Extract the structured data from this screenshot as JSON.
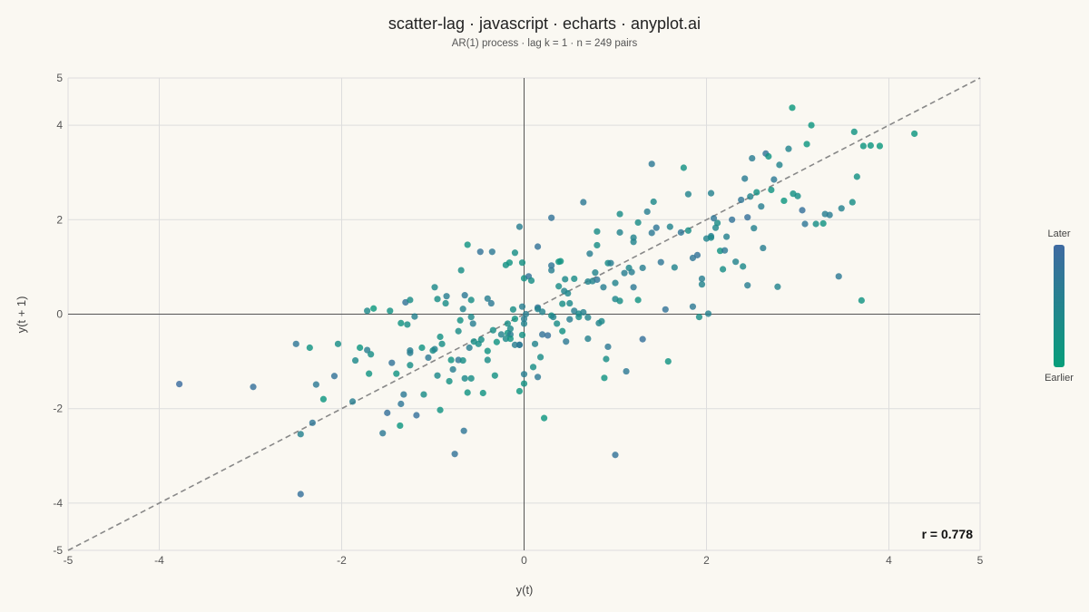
{
  "colors": {
    "background": "#faf8f2",
    "earlier": "#079e7a",
    "later": "#3f6aa1",
    "reference_line": "#888888",
    "grid": "#dddddd"
  },
  "chart_data": {
    "type": "scatter",
    "title": "scatter-lag · javascript · echarts · anyplot.ai",
    "subtitle": "AR(1) process · lag k = 1 · n = 249 pairs",
    "xlabel": "y(t)",
    "ylabel": "y(t + 1)",
    "xlim": [
      -5,
      5
    ],
    "ylim": [
      -5,
      5
    ],
    "x_ticks": [
      -5,
      -4,
      -2,
      0,
      2,
      4,
      5
    ],
    "y_ticks": [
      -5,
      -4,
      -2,
      0,
      2,
      4,
      5
    ],
    "grid": true,
    "reference_line": "y = x (dashed)",
    "color_scale": {
      "label_high": "Later",
      "label_low": "Earlier",
      "low_color": "#079e7a",
      "high_color": "#3f6aa1"
    },
    "annotation": "r = 0.778",
    "points": [
      [
        -3.78,
        -1.48,
        0.95
      ],
      [
        -2.97,
        -1.54,
        0.85
      ],
      [
        -2.5,
        -0.63,
        0.75
      ],
      [
        -2.35,
        -0.71,
        0.2
      ],
      [
        -2.45,
        -2.54,
        0.55
      ],
      [
        -2.45,
        -3.81,
        0.85
      ],
      [
        -2.32,
        -2.3,
        0.75
      ],
      [
        -2.28,
        -1.49,
        0.7
      ],
      [
        -2.2,
        -1.8,
        0.15
      ],
      [
        -2.08,
        -1.31,
        0.8
      ],
      [
        -2.04,
        -0.63,
        0.3
      ],
      [
        -1.88,
        -1.85,
        0.6
      ],
      [
        -1.85,
        -0.98,
        0.4
      ],
      [
        -1.8,
        -0.71,
        0.15
      ],
      [
        -1.72,
        -0.76,
        0.6
      ],
      [
        -1.7,
        -1.26,
        0.2
      ],
      [
        -1.68,
        -0.85,
        0.3
      ],
      [
        -1.72,
        0.07,
        0.4
      ],
      [
        -1.65,
        0.12,
        0.1
      ],
      [
        -1.55,
        -2.52,
        0.7
      ],
      [
        -1.5,
        -2.09,
        0.85
      ],
      [
        -1.47,
        0.07,
        0.25
      ],
      [
        -1.45,
        -1.03,
        0.8
      ],
      [
        -1.4,
        -1.26,
        0.2
      ],
      [
        -1.35,
        -1.9,
        0.75
      ],
      [
        -1.32,
        -1.7,
        0.7
      ],
      [
        -1.36,
        -2.36,
        0.15
      ],
      [
        -1.35,
        -0.19,
        0.2
      ],
      [
        -1.28,
        -0.22,
        0.3
      ],
      [
        -1.3,
        0.25,
        0.8
      ],
      [
        -1.25,
        0.3,
        0.35
      ],
      [
        -1.25,
        -1.08,
        0.3
      ],
      [
        -1.25,
        -0.77,
        0.6
      ],
      [
        -1.25,
        -0.82,
        0.6
      ],
      [
        -1.18,
        -2.14,
        0.85
      ],
      [
        -1.2,
        -0.05,
        0.55
      ],
      [
        -1.1,
        -1.7,
        0.35
      ],
      [
        -1.12,
        -0.71,
        0.2
      ],
      [
        -1.05,
        -0.92,
        0.7
      ],
      [
        -1.0,
        -0.77,
        0.3
      ],
      [
        -0.98,
        0.57,
        0.4
      ],
      [
        -0.98,
        -0.74,
        0.5
      ],
      [
        -0.95,
        -1.3,
        0.4
      ],
      [
        -0.95,
        0.32,
        0.3
      ],
      [
        -0.9,
        -0.63,
        0.3
      ],
      [
        -0.92,
        -0.48,
        0.25
      ],
      [
        -0.92,
        -2.03,
        0.2
      ],
      [
        -0.85,
        0.38,
        0.6
      ],
      [
        -0.86,
        0.23,
        0.35
      ],
      [
        -0.82,
        -1.42,
        0.25
      ],
      [
        -0.8,
        -0.97,
        0.2
      ],
      [
        -0.78,
        -1.17,
        0.6
      ],
      [
        -0.76,
        -2.96,
        0.8
      ],
      [
        -0.72,
        -0.97,
        0.75
      ],
      [
        -0.72,
        -0.36,
        0.35
      ],
      [
        -0.7,
        -0.13,
        0.25
      ],
      [
        -0.69,
        0.93,
        0.3
      ],
      [
        -0.67,
        -0.98,
        0.3
      ],
      [
        -0.65,
        -1.36,
        0.4
      ],
      [
        -0.65,
        0.4,
        0.7
      ],
      [
        -0.67,
        0.11,
        0.5
      ],
      [
        -0.66,
        -2.47,
        0.75
      ],
      [
        -0.62,
        1.47,
        0.2
      ],
      [
        -0.62,
        -1.66,
        0.2
      ],
      [
        -0.6,
        -0.71,
        0.6
      ],
      [
        -0.58,
        -1.36,
        0.3
      ],
      [
        -0.58,
        0.3,
        0.3
      ],
      [
        -0.58,
        -0.06,
        0.4
      ],
      [
        -0.56,
        -0.2,
        0.6
      ],
      [
        -0.55,
        -0.58,
        0.3
      ],
      [
        -0.5,
        -0.63,
        0.3
      ],
      [
        -0.48,
        1.32,
        0.8
      ],
      [
        -0.47,
        -0.54,
        0.3
      ],
      [
        -0.45,
        -1.67,
        0.2
      ],
      [
        -0.4,
        -0.78,
        0.2
      ],
      [
        -0.4,
        -0.97,
        0.35
      ],
      [
        -0.4,
        0.33,
        0.6
      ],
      [
        -0.36,
        0.23,
        0.7
      ],
      [
        -0.35,
        1.32,
        0.7
      ],
      [
        -0.34,
        -0.34,
        0.3
      ],
      [
        -0.3,
        -0.59,
        0.2
      ],
      [
        -0.32,
        -1.3,
        0.25
      ],
      [
        -0.25,
        -0.43,
        0.5
      ],
      [
        -0.2,
        1.04,
        0.25
      ],
      [
        -0.2,
        -0.52,
        0.4
      ],
      [
        -0.18,
        -0.4,
        0.2
      ],
      [
        -0.16,
        1.09,
        0.2
      ],
      [
        -0.18,
        -0.2,
        0.3
      ],
      [
        -0.15,
        -0.43,
        0.6
      ],
      [
        -0.15,
        -0.31,
        0.4
      ],
      [
        -0.15,
        -0.52,
        0.2
      ],
      [
        -0.12,
        0.1,
        0.3
      ],
      [
        -0.1,
        -0.1,
        0.2
      ],
      [
        -0.1,
        -0.65,
        0.6
      ],
      [
        -0.05,
        -0.65,
        0.7
      ],
      [
        -0.05,
        -1.63,
        0.15
      ],
      [
        -0.05,
        -0.65,
        0.7
      ],
      [
        -0.02,
        0.16,
        0.6
      ],
      [
        -0.02,
        -0.44,
        0.25
      ],
      [
        -0.05,
        1.85,
        0.6
      ],
      [
        -0.02,
        1.09,
        0.25
      ],
      [
        0.0,
        0.76,
        0.25
      ],
      [
        0.0,
        -1.47,
        0.25
      ],
      [
        0.0,
        -1.27,
        0.6
      ],
      [
        0.0,
        -0.2,
        0.5
      ],
      [
        0.0,
        -0.1,
        0.6
      ],
      [
        0.02,
        0.0,
        0.6
      ],
      [
        0.05,
        0.8,
        0.8
      ],
      [
        0.08,
        0.71,
        0.3
      ],
      [
        0.1,
        -1.12,
        0.3
      ],
      [
        0.12,
        -0.63,
        0.5
      ],
      [
        0.15,
        -1.33,
        0.7
      ],
      [
        0.15,
        1.43,
        0.8
      ],
      [
        0.15,
        0.14,
        0.8
      ],
      [
        0.15,
        0.11,
        0.5
      ],
      [
        0.18,
        -0.91,
        0.35
      ],
      [
        0.2,
        -0.43,
        0.8
      ],
      [
        0.2,
        0.05,
        0.5
      ],
      [
        0.22,
        -2.2,
        0.15
      ],
      [
        0.26,
        -0.45,
        0.85
      ],
      [
        0.3,
        0.93,
        0.6
      ],
      [
        0.3,
        -0.03,
        0.3
      ],
      [
        0.32,
        -0.06,
        0.5
      ],
      [
        0.3,
        1.03,
        0.75
      ],
      [
        0.3,
        2.04,
        0.8
      ],
      [
        0.36,
        -0.2,
        0.35
      ],
      [
        0.38,
        1.11,
        0.2
      ],
      [
        0.38,
        0.59,
        0.35
      ],
      [
        0.42,
        -0.36,
        0.25
      ],
      [
        0.42,
        0.22,
        0.3
      ],
      [
        0.44,
        0.49,
        0.5
      ],
      [
        0.46,
        -0.58,
        0.7
      ],
      [
        0.45,
        0.74,
        0.4
      ],
      [
        0.48,
        0.44,
        0.45
      ],
      [
        0.5,
        -0.11,
        0.6
      ],
      [
        0.5,
        0.23,
        0.4
      ],
      [
        0.55,
        0.07,
        0.6
      ],
      [
        0.55,
        0.75,
        0.35
      ],
      [
        0.6,
        -0.06,
        0.35
      ],
      [
        0.6,
        0.01,
        0.4
      ],
      [
        0.65,
        0.04,
        0.55
      ],
      [
        0.65,
        2.37,
        0.7
      ],
      [
        0.7,
        -0.07,
        0.5
      ],
      [
        0.7,
        -0.52,
        0.55
      ],
      [
        0.7,
        0.69,
        0.5
      ],
      [
        0.72,
        1.28,
        0.6
      ],
      [
        0.75,
        0.7,
        0.5
      ],
      [
        0.78,
        0.88,
        0.5
      ],
      [
        0.8,
        0.73,
        0.75
      ],
      [
        0.8,
        1.46,
        0.3
      ],
      [
        0.8,
        1.75,
        0.35
      ],
      [
        0.82,
        -0.19,
        0.5
      ],
      [
        0.85,
        -0.15,
        0.4
      ],
      [
        0.87,
        0.57,
        0.6
      ],
      [
        0.88,
        -1.35,
        0.2
      ],
      [
        0.9,
        -0.95,
        0.3
      ],
      [
        0.92,
        -0.69,
        0.7
      ],
      [
        0.92,
        1.08,
        0.35
      ],
      [
        0.95,
        1.08,
        0.6
      ],
      [
        1.0,
        0.66,
        0.5
      ],
      [
        1.0,
        0.32,
        0.45
      ],
      [
        1.0,
        -2.98,
        0.8
      ],
      [
        1.05,
        0.28,
        0.3
      ],
      [
        1.05,
        2.12,
        0.35
      ],
      [
        1.1,
        0.87,
        0.6
      ],
      [
        1.05,
        1.73,
        0.5
      ],
      [
        1.12,
        -1.21,
        0.7
      ],
      [
        1.15,
        0.98,
        0.45
      ],
      [
        1.18,
        0.89,
        0.6
      ],
      [
        1.2,
        0.57,
        0.7
      ],
      [
        1.2,
        1.53,
        0.5
      ],
      [
        1.2,
        1.62,
        0.5
      ],
      [
        1.25,
        1.94,
        0.35
      ],
      [
        1.25,
        0.3,
        0.2
      ],
      [
        1.3,
        0.98,
        0.6
      ],
      [
        1.3,
        -0.53,
        0.85
      ],
      [
        1.35,
        2.17,
        0.6
      ],
      [
        1.4,
        3.18,
        0.7
      ],
      [
        1.4,
        1.72,
        0.7
      ],
      [
        1.42,
        2.38,
        0.4
      ],
      [
        1.45,
        1.83,
        0.75
      ],
      [
        1.5,
        1.1,
        0.75
      ],
      [
        1.55,
        0.1,
        0.8
      ],
      [
        1.58,
        -1.0,
        0.2
      ],
      [
        1.6,
        1.85,
        0.5
      ],
      [
        1.65,
        0.99,
        0.5
      ],
      [
        1.72,
        1.73,
        0.75
      ],
      [
        1.75,
        3.1,
        0.25
      ],
      [
        1.8,
        1.77,
        0.3
      ],
      [
        1.8,
        2.54,
        0.5
      ],
      [
        1.85,
        1.19,
        0.75
      ],
      [
        1.85,
        0.16,
        0.7
      ],
      [
        1.9,
        1.25,
        0.8
      ],
      [
        1.92,
        -0.06,
        0.3
      ],
      [
        1.95,
        0.63,
        0.5
      ],
      [
        1.95,
        0.75,
        0.6
      ],
      [
        2.0,
        1.6,
        0.5
      ],
      [
        2.02,
        0.01,
        0.55
      ],
      [
        2.05,
        1.65,
        0.6
      ],
      [
        2.05,
        2.56,
        0.55
      ],
      [
        2.05,
        1.62,
        0.4
      ],
      [
        2.08,
        2.03,
        0.75
      ],
      [
        2.1,
        1.83,
        0.45
      ],
      [
        2.12,
        1.93,
        0.35
      ],
      [
        2.15,
        1.34,
        0.2
      ],
      [
        2.18,
        0.95,
        0.3
      ],
      [
        2.2,
        1.35,
        0.7
      ],
      [
        2.22,
        1.64,
        0.55
      ],
      [
        2.28,
        2.0,
        0.8
      ],
      [
        2.32,
        1.11,
        0.5
      ],
      [
        2.38,
        2.42,
        0.75
      ],
      [
        2.4,
        1.01,
        0.4
      ],
      [
        2.42,
        2.87,
        0.65
      ],
      [
        2.45,
        2.05,
        0.85
      ],
      [
        2.45,
        0.61,
        0.6
      ],
      [
        2.48,
        2.49,
        0.5
      ],
      [
        2.5,
        3.3,
        0.65
      ],
      [
        2.52,
        1.82,
        0.55
      ],
      [
        2.55,
        2.58,
        0.25
      ],
      [
        2.6,
        2.28,
        0.6
      ],
      [
        2.62,
        1.4,
        0.6
      ],
      [
        2.65,
        3.4,
        0.8
      ],
      [
        2.68,
        3.34,
        0.2
      ],
      [
        2.71,
        2.63,
        0.2
      ],
      [
        2.74,
        2.85,
        0.7
      ],
      [
        2.78,
        0.58,
        0.5
      ],
      [
        2.8,
        3.16,
        0.5
      ],
      [
        2.85,
        2.4,
        0.15
      ],
      [
        2.9,
        3.5,
        0.5
      ],
      [
        2.95,
        2.55,
        0.25
      ],
      [
        3.0,
        2.5,
        0.3
      ],
      [
        3.05,
        2.2,
        0.85
      ],
      [
        3.08,
        1.91,
        0.75
      ],
      [
        3.1,
        3.6,
        0.15
      ],
      [
        3.15,
        4.0,
        0.15
      ],
      [
        3.2,
        1.91,
        0.3
      ],
      [
        3.28,
        1.92,
        0.2
      ],
      [
        3.3,
        2.12,
        0.6
      ],
      [
        3.35,
        2.1,
        0.65
      ],
      [
        3.45,
        0.8,
        0.7
      ],
      [
        3.48,
        2.24,
        0.55
      ],
      [
        3.6,
        2.37,
        0.3
      ],
      [
        3.62,
        3.86,
        0.2
      ],
      [
        3.65,
        2.91,
        0.25
      ],
      [
        3.7,
        0.29,
        0.2
      ],
      [
        3.72,
        3.56,
        0.15
      ],
      [
        3.8,
        3.57,
        0.15
      ],
      [
        3.9,
        3.56,
        0.1
      ],
      [
        4.28,
        3.82,
        0.15
      ],
      [
        2.94,
        4.37,
        0.1
      ],
      [
        0.4,
        1.12,
        0.2
      ],
      [
        -0.1,
        1.3,
        0.3
      ]
    ]
  }
}
